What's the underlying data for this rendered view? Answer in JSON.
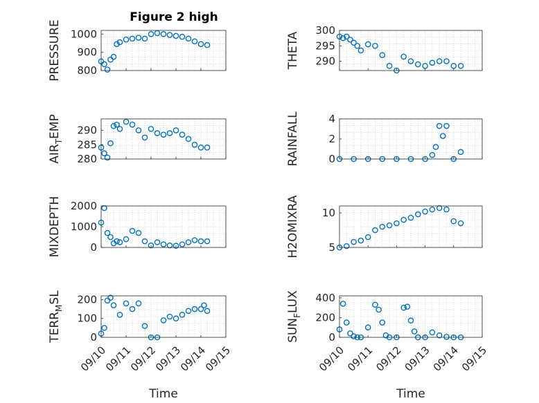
{
  "figure": {
    "title": "Figure 2 high",
    "marker_color": "#0072BD",
    "axis_color": "#262626",
    "grid_color": "#bdbdbd"
  },
  "chart_data": [
    {
      "type": "scatter",
      "ylabel": "PRESSURE",
      "ylim": [
        800,
        1020
      ],
      "yticks": [
        800,
        900,
        1000
      ],
      "xlim": [
        "09/10",
        "09/15"
      ],
      "grid": "on (dotted, minor)",
      "x": [
        "09/10 00:00",
        "09/10 03:00",
        "09/10 06:00",
        "09/10 09:00",
        "09/10 12:00",
        "09/10 15:00",
        "09/10 18:00",
        "09/11 00:00",
        "09/11 06:00",
        "09/11 12:00",
        "09/11 18:00",
        "09/12 00:00",
        "09/12 06:00",
        "09/12 12:00",
        "09/12 18:00",
        "09/13 00:00",
        "09/13 06:00",
        "09/13 12:00",
        "09/13 18:00",
        "09/14 00:00",
        "09/14 06:00"
      ],
      "y": [
        850,
        835,
        805,
        860,
        875,
        945,
        955,
        970,
        975,
        980,
        975,
        1000,
        1005,
        1000,
        995,
        990,
        985,
        975,
        960,
        945,
        940
      ]
    },
    {
      "type": "scatter",
      "ylabel": "THETA",
      "ylim": [
        287,
        300
      ],
      "yticks": [
        290,
        295,
        300
      ],
      "xlim": [
        "09/10",
        "09/15"
      ],
      "grid": "on (dotted, minor)",
      "x": [
        "09/10 00:00",
        "09/10 03:00",
        "09/10 06:00",
        "09/10 09:00",
        "09/10 12:00",
        "09/10 15:00",
        "09/10 18:00",
        "09/11 00:00",
        "09/11 06:00",
        "09/11 12:00",
        "09/11 18:00",
        "09/12 00:00",
        "09/12 06:00",
        "09/12 12:00",
        "09/12 18:00",
        "09/13 00:00",
        "09/13 06:00",
        "09/13 12:00",
        "09/13 18:00",
        "09/14 00:00",
        "09/14 06:00"
      ],
      "y": [
        298,
        297.5,
        298,
        297,
        296,
        295,
        293.5,
        295.5,
        295,
        292,
        288.5,
        287,
        291.5,
        290,
        289,
        288.5,
        289.5,
        290,
        290,
        288.5,
        288.5
      ]
    },
    {
      "type": "scatter",
      "ylabel": "AIR_TEMP",
      "ylim": [
        280,
        294
      ],
      "yticks": [
        280,
        285,
        290
      ],
      "xlim": [
        "09/10",
        "09/15"
      ],
      "grid": "on (dotted, minor)",
      "x": [
        "09/10 00:00",
        "09/10 03:00",
        "09/10 06:00",
        "09/10 09:00",
        "09/10 12:00",
        "09/10 15:00",
        "09/10 18:00",
        "09/11 00:00",
        "09/11 06:00",
        "09/11 12:00",
        "09/11 18:00",
        "09/12 00:00",
        "09/12 06:00",
        "09/12 12:00",
        "09/12 18:00",
        "09/13 00:00",
        "09/13 06:00",
        "09/13 12:00",
        "09/13 18:00",
        "09/14 00:00",
        "09/14 06:00"
      ],
      "y": [
        284,
        282,
        280.5,
        285.5,
        291.5,
        292,
        290.5,
        293,
        292,
        290,
        287.5,
        290.5,
        289,
        288.5,
        289,
        290,
        288.5,
        287,
        285,
        284,
        284
      ]
    },
    {
      "type": "scatter",
      "ylabel": "RAINFALL",
      "ylim": [
        0,
        4
      ],
      "yticks": [
        0,
        2,
        4
      ],
      "xlim": [
        "09/10",
        "09/15"
      ],
      "grid": "on (dotted, minor)",
      "x": [
        "09/10 00:00",
        "09/10 12:00",
        "09/11 00:00",
        "09/11 12:00",
        "09/12 00:00",
        "09/12 12:00",
        "09/13 00:00",
        "09/13 06:00",
        "09/13 09:00",
        "09/13 12:00",
        "09/13 15:00",
        "09/13 18:00",
        "09/14 00:00",
        "09/14 06:00"
      ],
      "y": [
        0,
        0,
        0,
        0,
        0,
        0,
        0,
        0.4,
        1.2,
        3.3,
        2.3,
        3.3,
        0,
        0.7
      ]
    },
    {
      "type": "scatter",
      "ylabel": "MIXDEPTH",
      "ylim": [
        0,
        2000
      ],
      "yticks": [
        0,
        1000,
        2000
      ],
      "xlim": [
        "09/10",
        "09/15"
      ],
      "grid": "on (dotted, minor)",
      "x": [
        "09/10 00:00",
        "09/10 03:00",
        "09/10 06:00",
        "09/10 09:00",
        "09/10 12:00",
        "09/10 15:00",
        "09/10 18:00",
        "09/11 00:00",
        "09/11 06:00",
        "09/11 12:00",
        "09/11 18:00",
        "09/12 00:00",
        "09/12 06:00",
        "09/12 12:00",
        "09/12 18:00",
        "09/13 00:00",
        "09/13 06:00",
        "09/13 12:00",
        "09/13 18:00",
        "09/14 00:00",
        "09/14 06:00"
      ],
      "y": [
        1200,
        1900,
        700,
        500,
        200,
        300,
        250,
        400,
        800,
        700,
        300,
        100,
        250,
        150,
        100,
        80,
        150,
        250,
        350,
        300,
        300
      ]
    },
    {
      "type": "scatter",
      "ylabel": "H2OMIXRA",
      "ylim": [
        5,
        11
      ],
      "yticks": [
        5,
        10
      ],
      "xlim": [
        "09/10",
        "09/15"
      ],
      "grid": "on (dotted, minor)",
      "x": [
        "09/10 00:00",
        "09/10 06:00",
        "09/10 12:00",
        "09/10 18:00",
        "09/11 00:00",
        "09/11 06:00",
        "09/11 12:00",
        "09/11 18:00",
        "09/12 00:00",
        "09/12 06:00",
        "09/12 12:00",
        "09/12 18:00",
        "09/13 00:00",
        "09/13 06:00",
        "09/13 12:00",
        "09/13 18:00",
        "09/14 00:00",
        "09/14 06:00"
      ],
      "y": [
        5,
        5.2,
        5.8,
        6,
        6.5,
        7.5,
        8,
        8.2,
        8.5,
        9,
        9.3,
        9.8,
        10.2,
        10.5,
        10.7,
        10.5,
        8.8,
        8.5
      ]
    },
    {
      "type": "scatter",
      "ylabel": "TERR_MSL",
      "ylim": [
        0,
        220
      ],
      "yticks": [
        0,
        100,
        200
      ],
      "xlim": [
        "09/10",
        "09/15"
      ],
      "xticks": [
        "09/10",
        "09/11",
        "09/12",
        "09/13",
        "09/14",
        "09/15"
      ],
      "xlabel": "Time",
      "grid": "on (dotted, minor)",
      "x": [
        "09/10 00:00",
        "09/10 03:00",
        "09/10 06:00",
        "09/10 09:00",
        "09/10 12:00",
        "09/10 18:00",
        "09/11 00:00",
        "09/11 06:00",
        "09/11 12:00",
        "09/11 18:00",
        "09/12 00:00",
        "09/12 06:00",
        "09/12 12:00",
        "09/12 18:00",
        "09/13 00:00",
        "09/13 06:00",
        "09/13 12:00",
        "09/13 18:00",
        "09/14 00:00",
        "09/14 03:00",
        "09/14 06:00"
      ],
      "y": [
        20,
        50,
        195,
        210,
        170,
        120,
        180,
        150,
        180,
        60,
        0,
        0,
        90,
        110,
        100,
        120,
        140,
        150,
        150,
        170,
        140
      ]
    },
    {
      "type": "scatter",
      "ylabel": "SUN_FLUX",
      "ylim": [
        0,
        420
      ],
      "yticks": [
        0,
        200,
        400
      ],
      "xlim": [
        "09/10",
        "09/15"
      ],
      "xticks": [
        "09/10",
        "09/11",
        "09/12",
        "09/13",
        "09/14",
        "09/15"
      ],
      "xlabel": "Time",
      "grid": "on (dotted, minor)",
      "x": [
        "09/10 00:00",
        "09/10 03:00",
        "09/10 06:00",
        "09/10 09:00",
        "09/10 12:00",
        "09/10 15:00",
        "09/10 18:00",
        "09/11 00:00",
        "09/11 06:00",
        "09/11 09:00",
        "09/11 12:00",
        "09/11 15:00",
        "09/11 18:00",
        "09/12 00:00",
        "09/12 06:00",
        "09/12 09:00",
        "09/12 12:00",
        "09/12 15:00",
        "09/12 18:00",
        "09/13 00:00",
        "09/13 06:00",
        "09/13 12:00",
        "09/13 18:00",
        "09/14 00:00",
        "09/14 06:00"
      ],
      "y": [
        80,
        340,
        150,
        40,
        10,
        0,
        0,
        100,
        330,
        280,
        150,
        20,
        0,
        0,
        300,
        310,
        170,
        60,
        0,
        0,
        50,
        20,
        5,
        0,
        0
      ]
    }
  ]
}
